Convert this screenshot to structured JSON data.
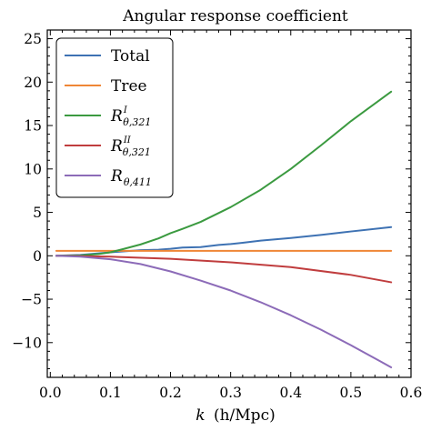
{
  "chart_data": {
    "type": "line",
    "title": "Angular response coefficient",
    "xlabel": {
      "prefix": "k",
      "unit": "(h/Mpc)"
    },
    "ylabel": "",
    "xlim": [
      -0.005,
      0.6
    ],
    "ylim": [
      -14,
      26
    ],
    "xticks": [
      0.0,
      0.1,
      0.2,
      0.3,
      0.4,
      0.5,
      0.6
    ],
    "xtick_labels": [
      "0.0",
      "0.1",
      "0.2",
      "0.3",
      "0.4",
      "0.5",
      "0.6"
    ],
    "yticks": [
      -10,
      -5,
      0,
      5,
      10,
      15,
      20,
      25
    ],
    "ytick_labels": [
      "−10",
      "−5",
      "0",
      "5",
      "10",
      "15",
      "20",
      "25"
    ],
    "x_minor_step": 0.02,
    "y_minor_step": 1,
    "grid": false,
    "legend_position": "top-left",
    "series": [
      {
        "name": "Total",
        "label_main": "Total",
        "label_sub": "",
        "label_sup": "",
        "color": "#3e72b3",
        "x": [
          0.01,
          0.05,
          0.1,
          0.15,
          0.18,
          0.2,
          0.22,
          0.25,
          0.28,
          0.3,
          0.32,
          0.35,
          0.4,
          0.45,
          0.5,
          0.567
        ],
        "y": [
          0.0,
          0.1,
          0.4,
          0.65,
          0.7,
          0.8,
          0.95,
          1.0,
          1.25,
          1.35,
          1.5,
          1.75,
          2.05,
          2.4,
          2.8,
          3.3
        ]
      },
      {
        "name": "Tree",
        "label_main": "Tree",
        "label_sub": "",
        "label_sup": "",
        "color": "#ef8636",
        "x": [
          0.01,
          0.567
        ],
        "y": [
          0.57,
          0.57
        ]
      },
      {
        "name": "R_θ,321^I",
        "label_main": "R",
        "label_sub": "θ,321",
        "label_sup": "I",
        "color": "#3b9a40",
        "x": [
          0.01,
          0.05,
          0.08,
          0.1,
          0.12,
          0.15,
          0.18,
          0.2,
          0.22,
          0.25,
          0.3,
          0.35,
          0.4,
          0.45,
          0.5,
          0.567
        ],
        "y": [
          0.0,
          0.05,
          0.2,
          0.4,
          0.75,
          1.3,
          2.0,
          2.6,
          3.1,
          3.9,
          5.6,
          7.6,
          10.0,
          12.7,
          15.5,
          18.9
        ]
      },
      {
        "name": "R_θ,321^II",
        "label_main": "R",
        "label_sub": "θ,321",
        "label_sup": "II",
        "color": "#c03d3e",
        "x": [
          0.01,
          0.1,
          0.2,
          0.3,
          0.4,
          0.5,
          0.567
        ],
        "y": [
          0.0,
          -0.1,
          -0.35,
          -0.75,
          -1.3,
          -2.2,
          -3.05
        ]
      },
      {
        "name": "R_θ,411",
        "label_main": "R",
        "label_sub": "θ,411",
        "label_sup": "",
        "color": "#8c6bb8",
        "x": [
          0.01,
          0.05,
          0.1,
          0.15,
          0.2,
          0.25,
          0.3,
          0.35,
          0.4,
          0.45,
          0.5,
          0.55,
          0.567
        ],
        "y": [
          0.0,
          -0.1,
          -0.4,
          -0.95,
          -1.8,
          -2.85,
          -4.0,
          -5.35,
          -6.85,
          -8.5,
          -10.3,
          -12.2,
          -12.85
        ]
      }
    ]
  }
}
